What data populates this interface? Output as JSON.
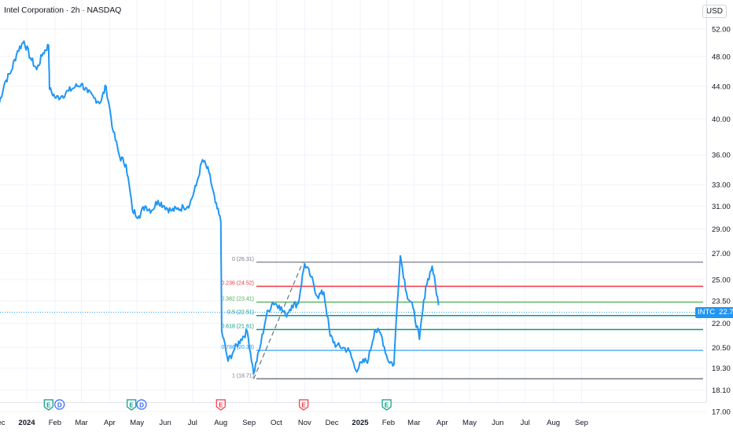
{
  "header": {
    "title": "Intel Corporation · 2h · NASDAQ",
    "currency": "USD"
  },
  "price_tag": {
    "symbol": "INTC",
    "value": "22.72"
  },
  "colors": {
    "price_line": "#2196f3",
    "fib_0": "#787b86",
    "fib_0236": "#f23645",
    "fib_0382": "#4caf50",
    "fib_05": "#089981",
    "fib_0618": "#089981",
    "fib_0786": "#2196f3",
    "fib_1": "#787b86",
    "earnings_green": "#089981",
    "earnings_red": "#f23645",
    "dividend_blue": "#2962ff"
  },
  "chart_data": {
    "type": "line",
    "symbol": "INTC",
    "title": "Intel Corporation · 2h · NASDAQ",
    "x_tick_labels": [
      "Dec",
      "2024",
      "Feb",
      "Mar",
      "Apr",
      "May",
      "Jun",
      "Jul",
      "Aug",
      "Sep",
      "Oct",
      "Nov",
      "Dec",
      "2025",
      "Feb",
      "Mar",
      "Apr",
      "May",
      "Jun",
      "Jul",
      "Aug",
      "Sep"
    ],
    "y_tick_labels": [
      "52.00",
      "48.00",
      "44.00",
      "40.00",
      "36.00",
      "33.00",
      "31.00",
      "29.00",
      "27.00",
      "25.00",
      "23.50",
      "22.00",
      "20.50",
      "19.30",
      "18.10",
      "17.00"
    ],
    "y_scale": "log",
    "ylim": [
      17.0,
      55.0
    ],
    "grid": true,
    "last_price": 22.72,
    "series": [
      {
        "x": [
          "2023-12-01",
          "2023-12-08",
          "2023-12-15",
          "2023-12-22",
          "2023-12-29",
          "2024-01-05",
          "2024-01-12",
          "2024-01-19",
          "2024-01-25",
          "2024-01-26",
          "2024-02-02",
          "2024-02-09",
          "2024-02-16",
          "2024-02-23",
          "2024-03-01",
          "2024-03-08",
          "2024-03-15",
          "2024-03-22",
          "2024-03-28",
          "2024-04-05",
          "2024-04-12",
          "2024-04-19",
          "2024-04-26",
          "2024-05-03",
          "2024-05-10",
          "2024-05-17",
          "2024-05-24",
          "2024-05-31",
          "2024-06-07",
          "2024-06-14",
          "2024-06-21",
          "2024-06-28",
          "2024-07-05",
          "2024-07-12",
          "2024-07-19",
          "2024-07-26",
          "2024-08-01",
          "2024-08-02",
          "2024-08-09",
          "2024-08-16",
          "2024-08-23",
          "2024-08-30",
          "2024-09-06",
          "2024-09-13",
          "2024-09-20",
          "2024-09-27",
          "2024-10-04",
          "2024-10-11",
          "2024-10-18",
          "2024-10-25",
          "2024-11-01",
          "2024-11-08",
          "2024-11-15",
          "2024-11-22",
          "2024-11-29",
          "2024-12-06",
          "2024-12-13",
          "2024-12-20",
          "2024-12-27",
          "2025-01-03",
          "2025-01-10",
          "2025-01-17",
          "2025-01-24",
          "2025-01-31",
          "2025-02-07",
          "2025-02-14",
          "2025-02-21",
          "2025-02-28",
          "2025-03-07",
          "2025-03-14",
          "2025-03-21",
          "2025-03-28"
        ],
        "values": [
          41.5,
          44.5,
          46.0,
          48.8,
          50.2,
          47.8,
          46.2,
          48.5,
          49.6,
          43.6,
          42.5,
          42.8,
          43.4,
          43.9,
          44.3,
          43.2,
          42.5,
          42.0,
          44.0,
          38.5,
          35.8,
          35.0,
          30.6,
          30.1,
          31.0,
          30.6,
          31.5,
          31.0,
          30.6,
          30.7,
          30.9,
          31.2,
          32.9,
          35.5,
          34.2,
          31.3,
          29.6,
          21.5,
          19.7,
          20.4,
          21.0,
          21.5,
          19.0,
          20.5,
          22.5,
          23.4,
          23.2,
          22.5,
          23.2,
          23.3,
          26.2,
          25.2,
          23.8,
          24.1,
          21.2,
          20.6,
          20.5,
          20.3,
          19.2,
          19.6,
          19.8,
          21.6,
          21.3,
          19.8,
          19.5,
          26.8,
          24.0,
          23.0,
          21.0,
          24.5,
          26.0,
          23.2
        ]
      }
    ],
    "fibonacci": [
      {
        "label": "0 (26.31)",
        "price": 26.31
      },
      {
        "label": "0.236 (24.52)",
        "price": 24.52
      },
      {
        "label": "0.382 (23.41)",
        "price": 23.41
      },
      {
        "label": "0.5 (22.51)",
        "price": 22.51
      },
      {
        "label": "0.618 (21.61)",
        "price": 21.61
      },
      {
        "label": "0.786 (20.33)",
        "price": 20.33
      },
      {
        "label": "1 (18.71)",
        "price": 18.71
      }
    ],
    "events": [
      {
        "x": "2024-01-25",
        "type": "earnings",
        "label": "E"
      },
      {
        "x": "2024-02-06",
        "type": "dividend",
        "label": "D"
      },
      {
        "x": "2024-04-25",
        "type": "earnings",
        "label": "E"
      },
      {
        "x": "2024-05-06",
        "type": "dividend",
        "label": "D"
      },
      {
        "x": "2024-08-01",
        "type": "earnings_miss",
        "label": "E"
      },
      {
        "x": "2024-10-31",
        "type": "earnings_miss",
        "label": "E"
      },
      {
        "x": "2025-01-30",
        "type": "earnings",
        "label": "E"
      }
    ]
  }
}
